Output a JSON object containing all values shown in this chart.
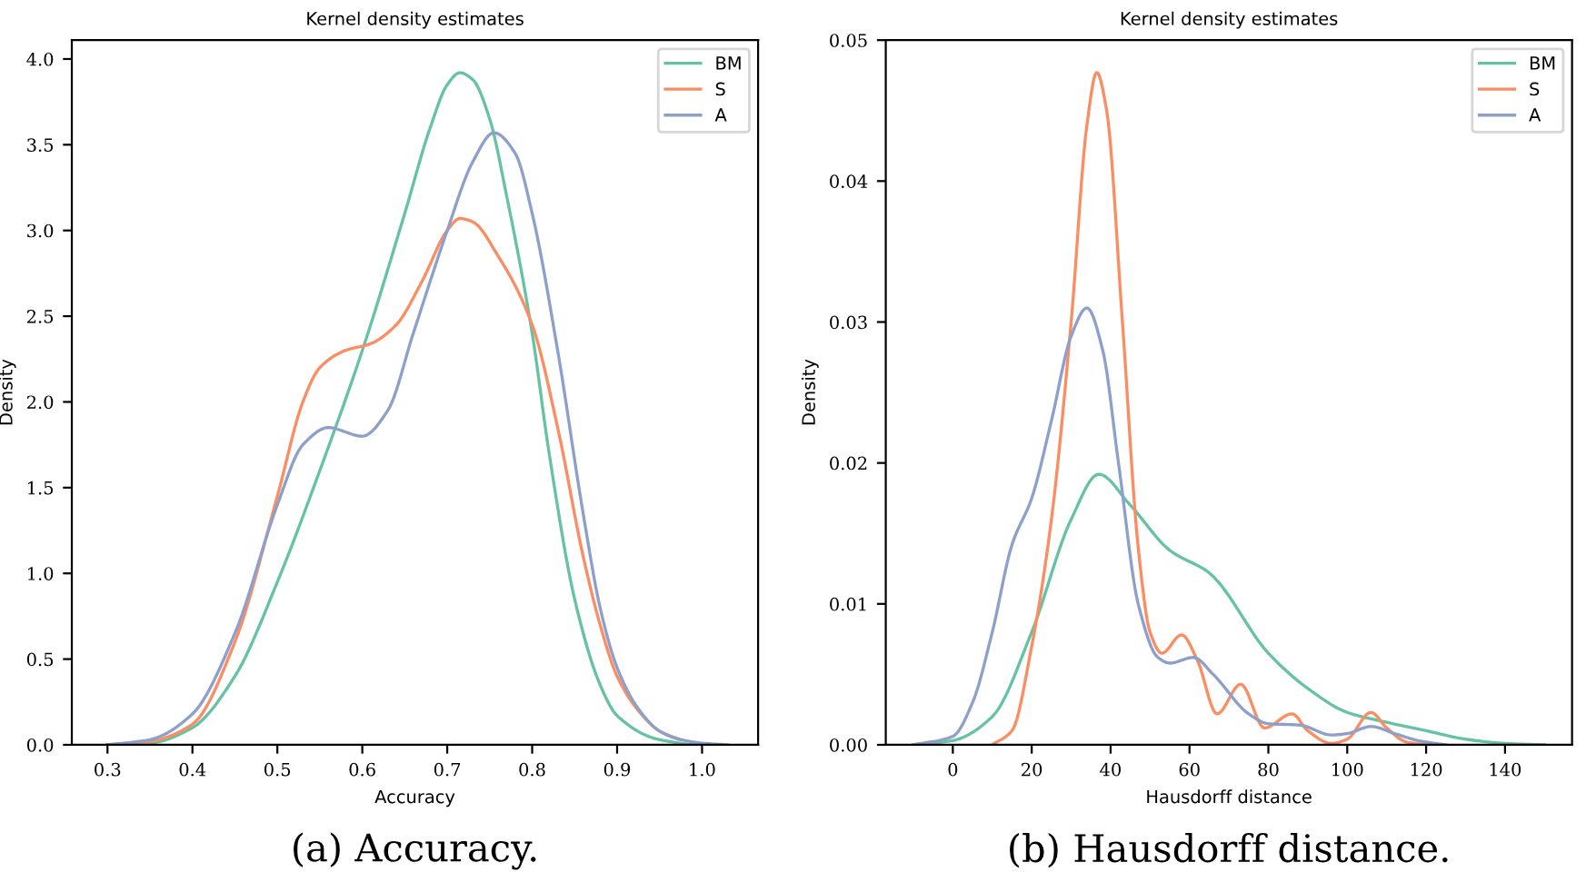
{
  "chart_data": [
    {
      "type": "line",
      "title": "Kernel density estimates",
      "xlabel": "Accuracy",
      "ylabel": "Density",
      "xlim": [
        0.258,
        1.066
      ],
      "ylim": [
        0,
        4.11
      ],
      "xticks": [
        0.3,
        0.4,
        0.5,
        0.6,
        0.7,
        0.8,
        0.9,
        {
          "value": 1,
          "label": "1.0"
        }
      ],
      "yticks": [
        {
          "value": 0,
          "label": "0.0"
        },
        0.5,
        {
          "value": 1,
          "label": "1.0"
        },
        1.5,
        {
          "value": 2,
          "label": "2.0"
        },
        2.5,
        {
          "value": 3,
          "label": "3.0"
        },
        3.5,
        {
          "value": 4,
          "label": "4.0"
        }
      ],
      "legend": "top right",
      "grid": false,
      "annotations": [
        "(a) Accuracy."
      ],
      "series": [
        {
          "name": "BM",
          "color": "#66c2a5",
          "x": [
            0.3,
            0.35,
            0.4,
            0.45,
            0.5,
            0.55,
            0.6,
            0.65,
            0.68,
            0.7,
            0.715,
            0.73,
            0.75,
            0.77,
            0.8,
            0.82,
            0.85,
            0.88,
            0.9,
            0.95,
            1.0,
            1.02
          ],
          "values": [
            0,
            0.01,
            0.1,
            0.4,
            0.95,
            1.6,
            2.3,
            3.1,
            3.6,
            3.85,
            3.92,
            3.88,
            3.65,
            3.2,
            2.4,
            1.7,
            0.85,
            0.35,
            0.17,
            0.03,
            0.0,
            0
          ]
        },
        {
          "name": "S",
          "color": "#fc8d62",
          "x": [
            0.3,
            0.35,
            0.4,
            0.45,
            0.5,
            0.53,
            0.55,
            0.58,
            0.61,
            0.64,
            0.67,
            0.7,
            0.715,
            0.73,
            0.76,
            0.8,
            0.83,
            0.86,
            0.88,
            0.9,
            0.925,
            0.95,
            0.975
          ],
          "values": [
            0,
            0.02,
            0.12,
            0.6,
            1.45,
            2.0,
            2.2,
            2.3,
            2.34,
            2.45,
            2.7,
            3.0,
            3.07,
            3.05,
            2.85,
            2.45,
            1.85,
            1.1,
            0.7,
            0.4,
            0.2,
            0.08,
            0.03
          ]
        },
        {
          "name": "A",
          "color": "#8da0cb",
          "x": [
            0.3,
            0.35,
            0.4,
            0.45,
            0.5,
            0.53,
            0.56,
            0.6,
            0.63,
            0.66,
            0.7,
            0.73,
            0.755,
            0.78,
            0.8,
            0.83,
            0.86,
            0.88,
            0.9,
            0.925,
            0.95,
            0.975,
            1.0,
            1.03
          ],
          "values": [
            0,
            0.03,
            0.18,
            0.65,
            1.4,
            1.75,
            1.85,
            1.8,
            1.95,
            2.4,
            3.0,
            3.4,
            3.57,
            3.45,
            3.1,
            2.3,
            1.35,
            0.8,
            0.45,
            0.21,
            0.08,
            0.03,
            0.01,
            0
          ]
        }
      ]
    },
    {
      "type": "line",
      "title": "Kernel density estimates",
      "xlabel": "Hausdorff distance",
      "ylabel": "Density",
      "xlim": [
        -17,
        157
      ],
      "ylim": [
        0,
        0.05
      ],
      "xticks": [
        0,
        20,
        40,
        60,
        80,
        100,
        120,
        140
      ],
      "yticks": [
        {
          "value": 0,
          "label": "0.00"
        },
        0.01,
        0.02,
        0.03,
        0.04,
        0.05
      ],
      "legend": "top right",
      "grid": false,
      "annotations": [
        "(b) Hausdorff distance."
      ],
      "series": [
        {
          "name": "BM",
          "color": "#66c2a5",
          "x": [
            -10,
            0,
            10,
            20,
            30,
            37,
            45,
            55,
            65,
            80,
            90,
            100,
            110,
            120,
            130,
            140,
            150
          ],
          "values": [
            0,
            0.0003,
            0.002,
            0.008,
            0.016,
            0.0192,
            0.017,
            0.0138,
            0.0122,
            0.0065,
            0.004,
            0.0023,
            0.0016,
            0.001,
            0.0004,
            0.0001,
            0
          ]
        },
        {
          "name": "S",
          "color": "#fc8d62",
          "x": [
            10,
            15,
            20,
            25,
            30,
            34,
            36.5,
            39,
            43,
            47,
            50,
            53,
            58,
            62,
            67,
            73,
            79,
            86,
            90,
            96,
            100,
            106,
            110,
            115,
            120
          ],
          "values": [
            0,
            0.001,
            0.007,
            0.016,
            0.03,
            0.044,
            0.0477,
            0.045,
            0.03,
            0.014,
            0.008,
            0.0065,
            0.0078,
            0.006,
            0.0022,
            0.0043,
            0.0012,
            0.0022,
            0.001,
            0.0001,
            0.0004,
            0.0023,
            0.0012,
            0.0002,
            0
          ]
        },
        {
          "name": "A",
          "color": "#8da0cb",
          "x": [
            -10,
            0,
            5,
            10,
            15,
            20,
            25,
            30,
            34,
            38,
            42,
            47,
            52,
            55,
            61,
            66,
            75,
            80,
            88,
            96,
            100,
            106,
            112,
            118,
            125
          ],
          "values": [
            0,
            0.0006,
            0.003,
            0.008,
            0.0142,
            0.0175,
            0.023,
            0.029,
            0.031,
            0.028,
            0.02,
            0.01,
            0.0062,
            0.0058,
            0.0062,
            0.005,
            0.0022,
            0.0015,
            0.0014,
            0.0007,
            0.0008,
            0.0013,
            0.0008,
            0.0003,
            0
          ]
        }
      ]
    }
  ]
}
